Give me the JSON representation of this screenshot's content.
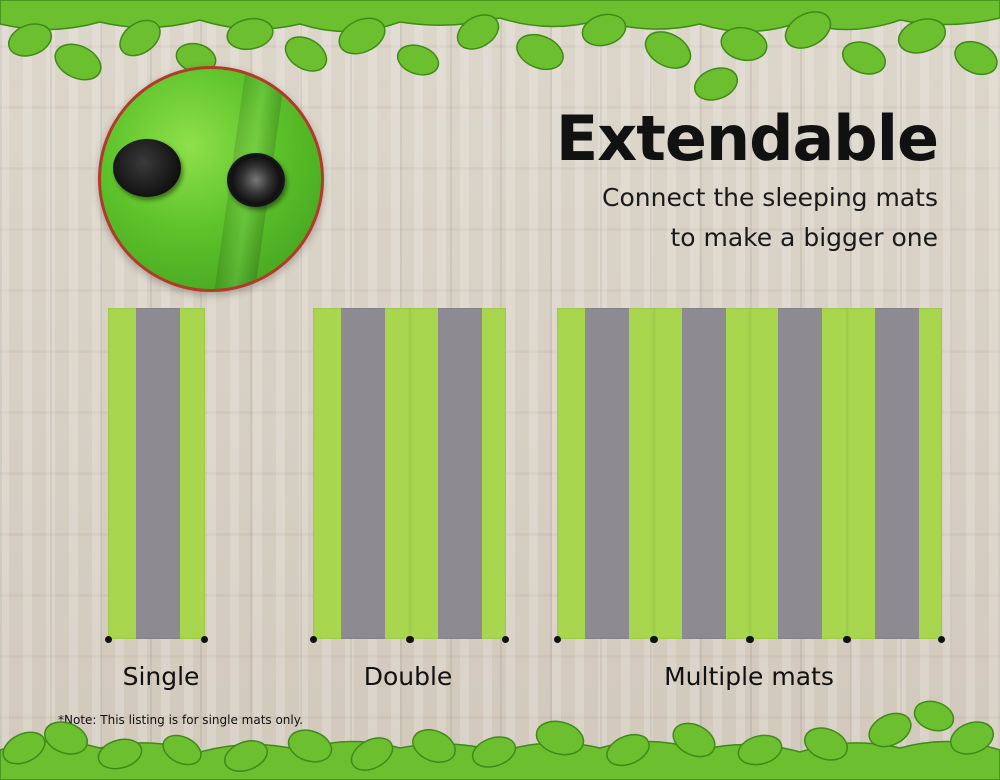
{
  "headline": "Extendable",
  "subtitle_line1": "Connect the sleeping mats",
  "subtitle_line2": "to make a bigger one",
  "groups": [
    {
      "label": "Single",
      "mat_count": 1
    },
    {
      "label": "Double",
      "mat_count": 2
    },
    {
      "label": "Multiple mats",
      "mat_count": 4
    }
  ],
  "note": "*Note: This listing is for single mats only.",
  "colors": {
    "mat_green": "#a9d64f",
    "mat_grey": "#8e8a92",
    "snap_black": "#111111",
    "circle_border": "#b33a2a",
    "leaf_green": "#6cbf2e"
  },
  "icons": [
    "snap-button-icon",
    "leaf-icon"
  ]
}
